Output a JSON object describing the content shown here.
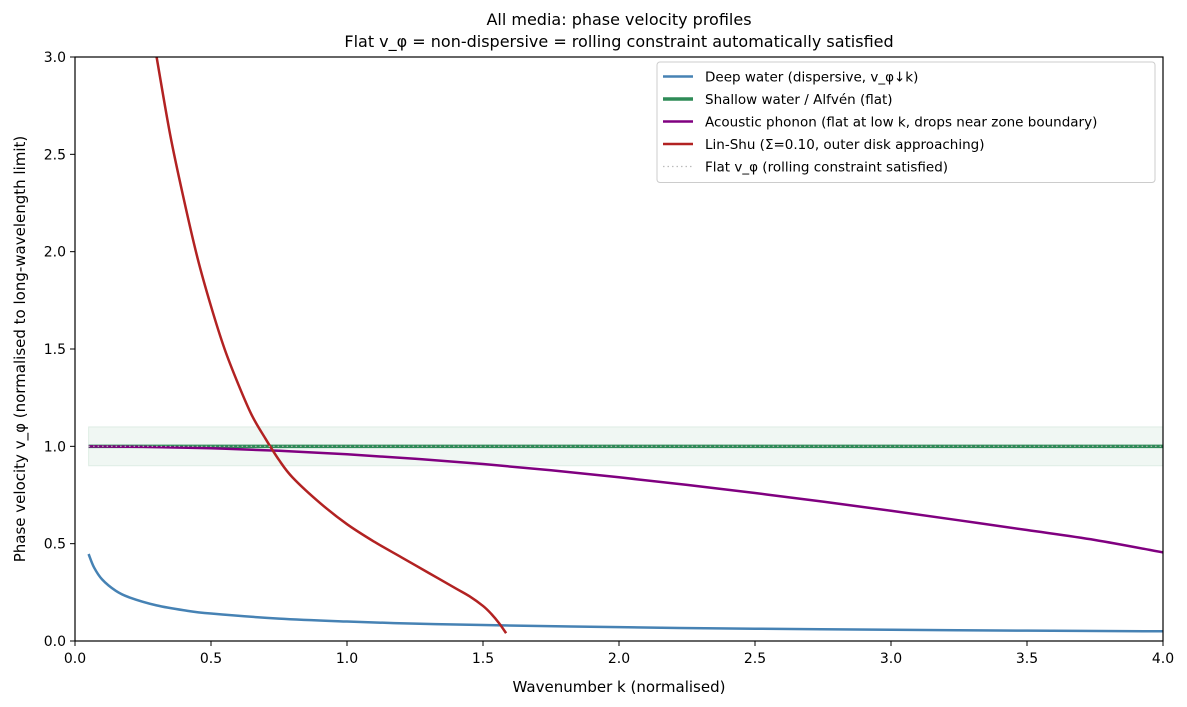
{
  "chart_data": {
    "type": "line",
    "title": "All media: phase velocity profiles",
    "subtitle": "Flat v_φ = non-dispersive = rolling constraint automatically satisfied",
    "xlabel": "Wavenumber k  (normalised)",
    "ylabel": "Phase velocity v_φ  (normalised to long-wavelength limit)",
    "xlim": [
      0,
      4
    ],
    "ylim": [
      0,
      3
    ],
    "xticks": [
      0,
      0.5,
      1,
      1.5,
      2,
      2.5,
      3,
      3.5,
      4
    ],
    "xtick_labels": [
      "0.0",
      "0.5",
      "1.0",
      "1.5",
      "2.0",
      "2.5",
      "3.0",
      "3.5",
      "4.0"
    ],
    "yticks": [
      0,
      0.5,
      1,
      1.5,
      2,
      2.5,
      3
    ],
    "ytick_labels": [
      "0.0",
      "0.5",
      "1.0",
      "1.5",
      "2.0",
      "2.5",
      "3.0"
    ],
    "legend_position": "top-right",
    "band": {
      "from": 0.9,
      "to": 1.1,
      "x": [
        0.05,
        4.0
      ],
      "color": "#2e8b57"
    },
    "series": [
      {
        "name": "Deep water  (dispersive, v_φ↓k)",
        "color": "#4682b4",
        "width": 2.5,
        "style": "solid",
        "x": [
          0.05,
          0.07,
          0.1,
          0.15,
          0.2,
          0.3,
          0.4,
          0.5,
          0.75,
          1.0,
          1.25,
          1.5,
          2.0,
          2.5,
          3.0,
          3.5,
          4.0
        ],
        "y": [
          0.447,
          0.378,
          0.316,
          0.258,
          0.224,
          0.183,
          0.158,
          0.141,
          0.115,
          0.1,
          0.089,
          0.082,
          0.071,
          0.063,
          0.058,
          0.053,
          0.05
        ]
      },
      {
        "name": "Shallow water / Alfvén  (flat)",
        "color": "#2e8b57",
        "width": 3.5,
        "style": "solid",
        "x": [
          0.05,
          4.0
        ],
        "y": [
          1.0,
          1.0
        ]
      },
      {
        "name": "Acoustic phonon  (flat at low k, drops near zone boundary)",
        "color": "#800080",
        "width": 2.5,
        "style": "solid",
        "x": [
          0.05,
          0.25,
          0.5,
          0.75,
          1.0,
          1.25,
          1.5,
          1.75,
          2.0,
          2.25,
          2.5,
          2.75,
          3.0,
          3.25,
          3.5,
          3.75,
          4.0
        ],
        "y": [
          1.0,
          0.997,
          0.99,
          0.977,
          0.959,
          0.936,
          0.909,
          0.877,
          0.841,
          0.802,
          0.76,
          0.716,
          0.669,
          0.62,
          0.57,
          0.519,
          0.455
        ]
      },
      {
        "name": "Lin-Shu (Σ=0.10, outer disk approaching)",
        "color": "#b22222",
        "width": 2.5,
        "style": "solid",
        "x": [
          0.3,
          0.35,
          0.4,
          0.45,
          0.5,
          0.55,
          0.6,
          0.65,
          0.7,
          0.75,
          0.8,
          0.9,
          1.0,
          1.1,
          1.2,
          1.3,
          1.4,
          1.45,
          1.5,
          1.53,
          1.56,
          1.585
        ],
        "y": [
          3.0,
          2.6,
          2.27,
          1.97,
          1.72,
          1.5,
          1.32,
          1.16,
          1.04,
          0.93,
          0.84,
          0.71,
          0.6,
          0.51,
          0.43,
          0.35,
          0.27,
          0.23,
          0.18,
          0.14,
          0.09,
          0.04
        ]
      },
      {
        "name": "Flat v_φ (rolling constraint satisfied)",
        "color": "#bbbbbb",
        "width": 1.2,
        "style": "dotted",
        "x": [
          0.05,
          4.0
        ],
        "y": [
          1.0,
          1.0
        ]
      }
    ]
  }
}
